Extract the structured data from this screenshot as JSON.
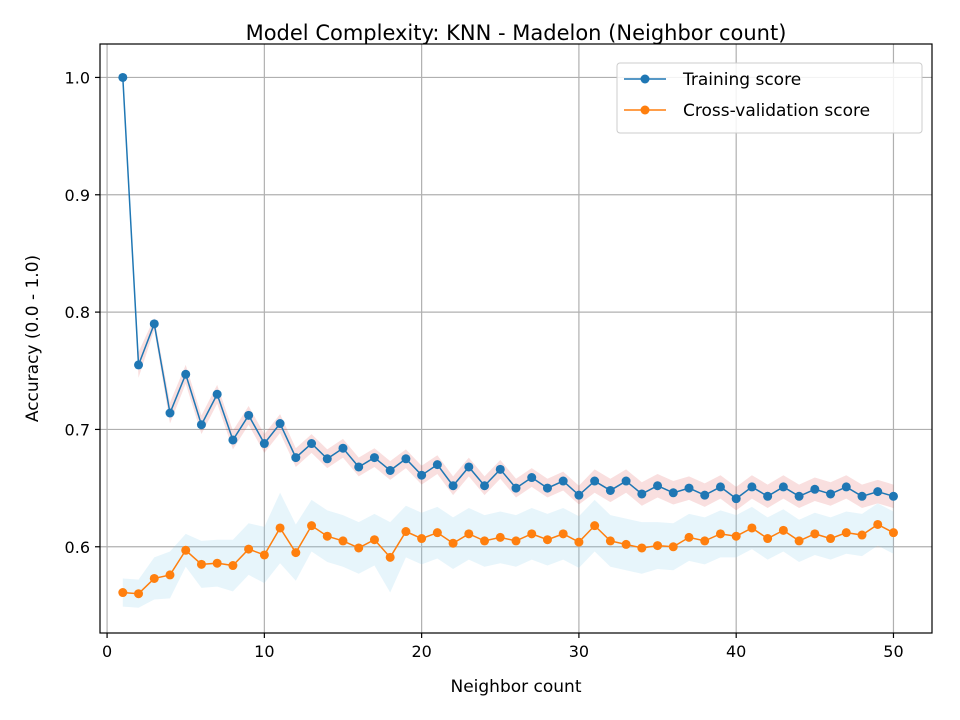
{
  "chart_data": {
    "type": "line",
    "title": "Model Complexity: KNN - Madelon (Neighbor count)",
    "xlabel": "Neighbor count",
    "ylabel": "Accuracy (0.0 - 1.0)",
    "xlim": [
      -0.45,
      52.45
    ],
    "ylim": [
      0.5265,
      1.0285
    ],
    "xticks": [
      0,
      10,
      20,
      30,
      40,
      50
    ],
    "yticks": [
      0.6,
      0.7,
      0.8,
      0.9,
      1.0
    ],
    "xtick_labels": [
      "0",
      "10",
      "20",
      "30",
      "40",
      "50"
    ],
    "ytick_labels": [
      "0.6",
      "0.7",
      "0.8",
      "0.9",
      "1.0"
    ],
    "grid": true,
    "legend_position": "top-right",
    "x": [
      1,
      2,
      3,
      4,
      5,
      6,
      7,
      8,
      9,
      10,
      11,
      12,
      13,
      14,
      15,
      16,
      17,
      18,
      19,
      20,
      21,
      22,
      23,
      24,
      25,
      26,
      27,
      28,
      29,
      30,
      31,
      32,
      33,
      34,
      35,
      36,
      37,
      38,
      39,
      40,
      41,
      42,
      43,
      44,
      45,
      46,
      47,
      48,
      49,
      50
    ],
    "series": [
      {
        "name": "Training score",
        "color": "#1f77b4",
        "band_color": "#d62728",
        "values": [
          1.0,
          0.755,
          0.79,
          0.714,
          0.747,
          0.704,
          0.73,
          0.691,
          0.712,
          0.688,
          0.705,
          0.676,
          0.688,
          0.675,
          0.684,
          0.668,
          0.676,
          0.665,
          0.675,
          0.661,
          0.67,
          0.652,
          0.668,
          0.652,
          0.666,
          0.65,
          0.659,
          0.65,
          0.656,
          0.644,
          0.656,
          0.648,
          0.656,
          0.645,
          0.652,
          0.646,
          0.65,
          0.644,
          0.651,
          0.641,
          0.651,
          0.643,
          0.651,
          0.643,
          0.649,
          0.645,
          0.651,
          0.643,
          0.647,
          0.643
        ],
        "std": [
          0.0,
          0.011,
          0.005,
          0.009,
          0.008,
          0.008,
          0.008,
          0.008,
          0.008,
          0.008,
          0.008,
          0.008,
          0.008,
          0.008,
          0.008,
          0.008,
          0.008,
          0.008,
          0.008,
          0.008,
          0.008,
          0.008,
          0.008,
          0.008,
          0.008,
          0.008,
          0.008,
          0.008,
          0.008,
          0.008,
          0.01,
          0.01,
          0.01,
          0.01,
          0.01,
          0.01,
          0.01,
          0.01,
          0.01,
          0.01,
          0.01,
          0.01,
          0.01,
          0.01,
          0.01,
          0.01,
          0.01,
          0.01,
          0.01,
          0.01
        ]
      },
      {
        "name": "Cross-validation score",
        "color": "#ff7f0e",
        "band_color": "#87ceeb",
        "values": [
          0.561,
          0.56,
          0.573,
          0.576,
          0.597,
          0.585,
          0.586,
          0.584,
          0.598,
          0.593,
          0.616,
          0.595,
          0.618,
          0.609,
          0.605,
          0.599,
          0.606,
          0.591,
          0.613,
          0.607,
          0.612,
          0.603,
          0.611,
          0.605,
          0.608,
          0.605,
          0.611,
          0.606,
          0.611,
          0.604,
          0.618,
          0.605,
          0.602,
          0.599,
          0.601,
          0.6,
          0.608,
          0.605,
          0.611,
          0.609,
          0.616,
          0.607,
          0.614,
          0.605,
          0.611,
          0.607,
          0.612,
          0.61,
          0.619,
          0.612
        ],
        "std": [
          0.012,
          0.012,
          0.018,
          0.02,
          0.014,
          0.02,
          0.02,
          0.022,
          0.022,
          0.024,
          0.03,
          0.024,
          0.022,
          0.022,
          0.022,
          0.022,
          0.022,
          0.03,
          0.022,
          0.022,
          0.022,
          0.022,
          0.022,
          0.022,
          0.022,
          0.022,
          0.022,
          0.022,
          0.022,
          0.022,
          0.022,
          0.022,
          0.022,
          0.022,
          0.02,
          0.02,
          0.02,
          0.02,
          0.02,
          0.018,
          0.018,
          0.018,
          0.018,
          0.018,
          0.018,
          0.018,
          0.018,
          0.018,
          0.018,
          0.018
        ]
      }
    ]
  }
}
